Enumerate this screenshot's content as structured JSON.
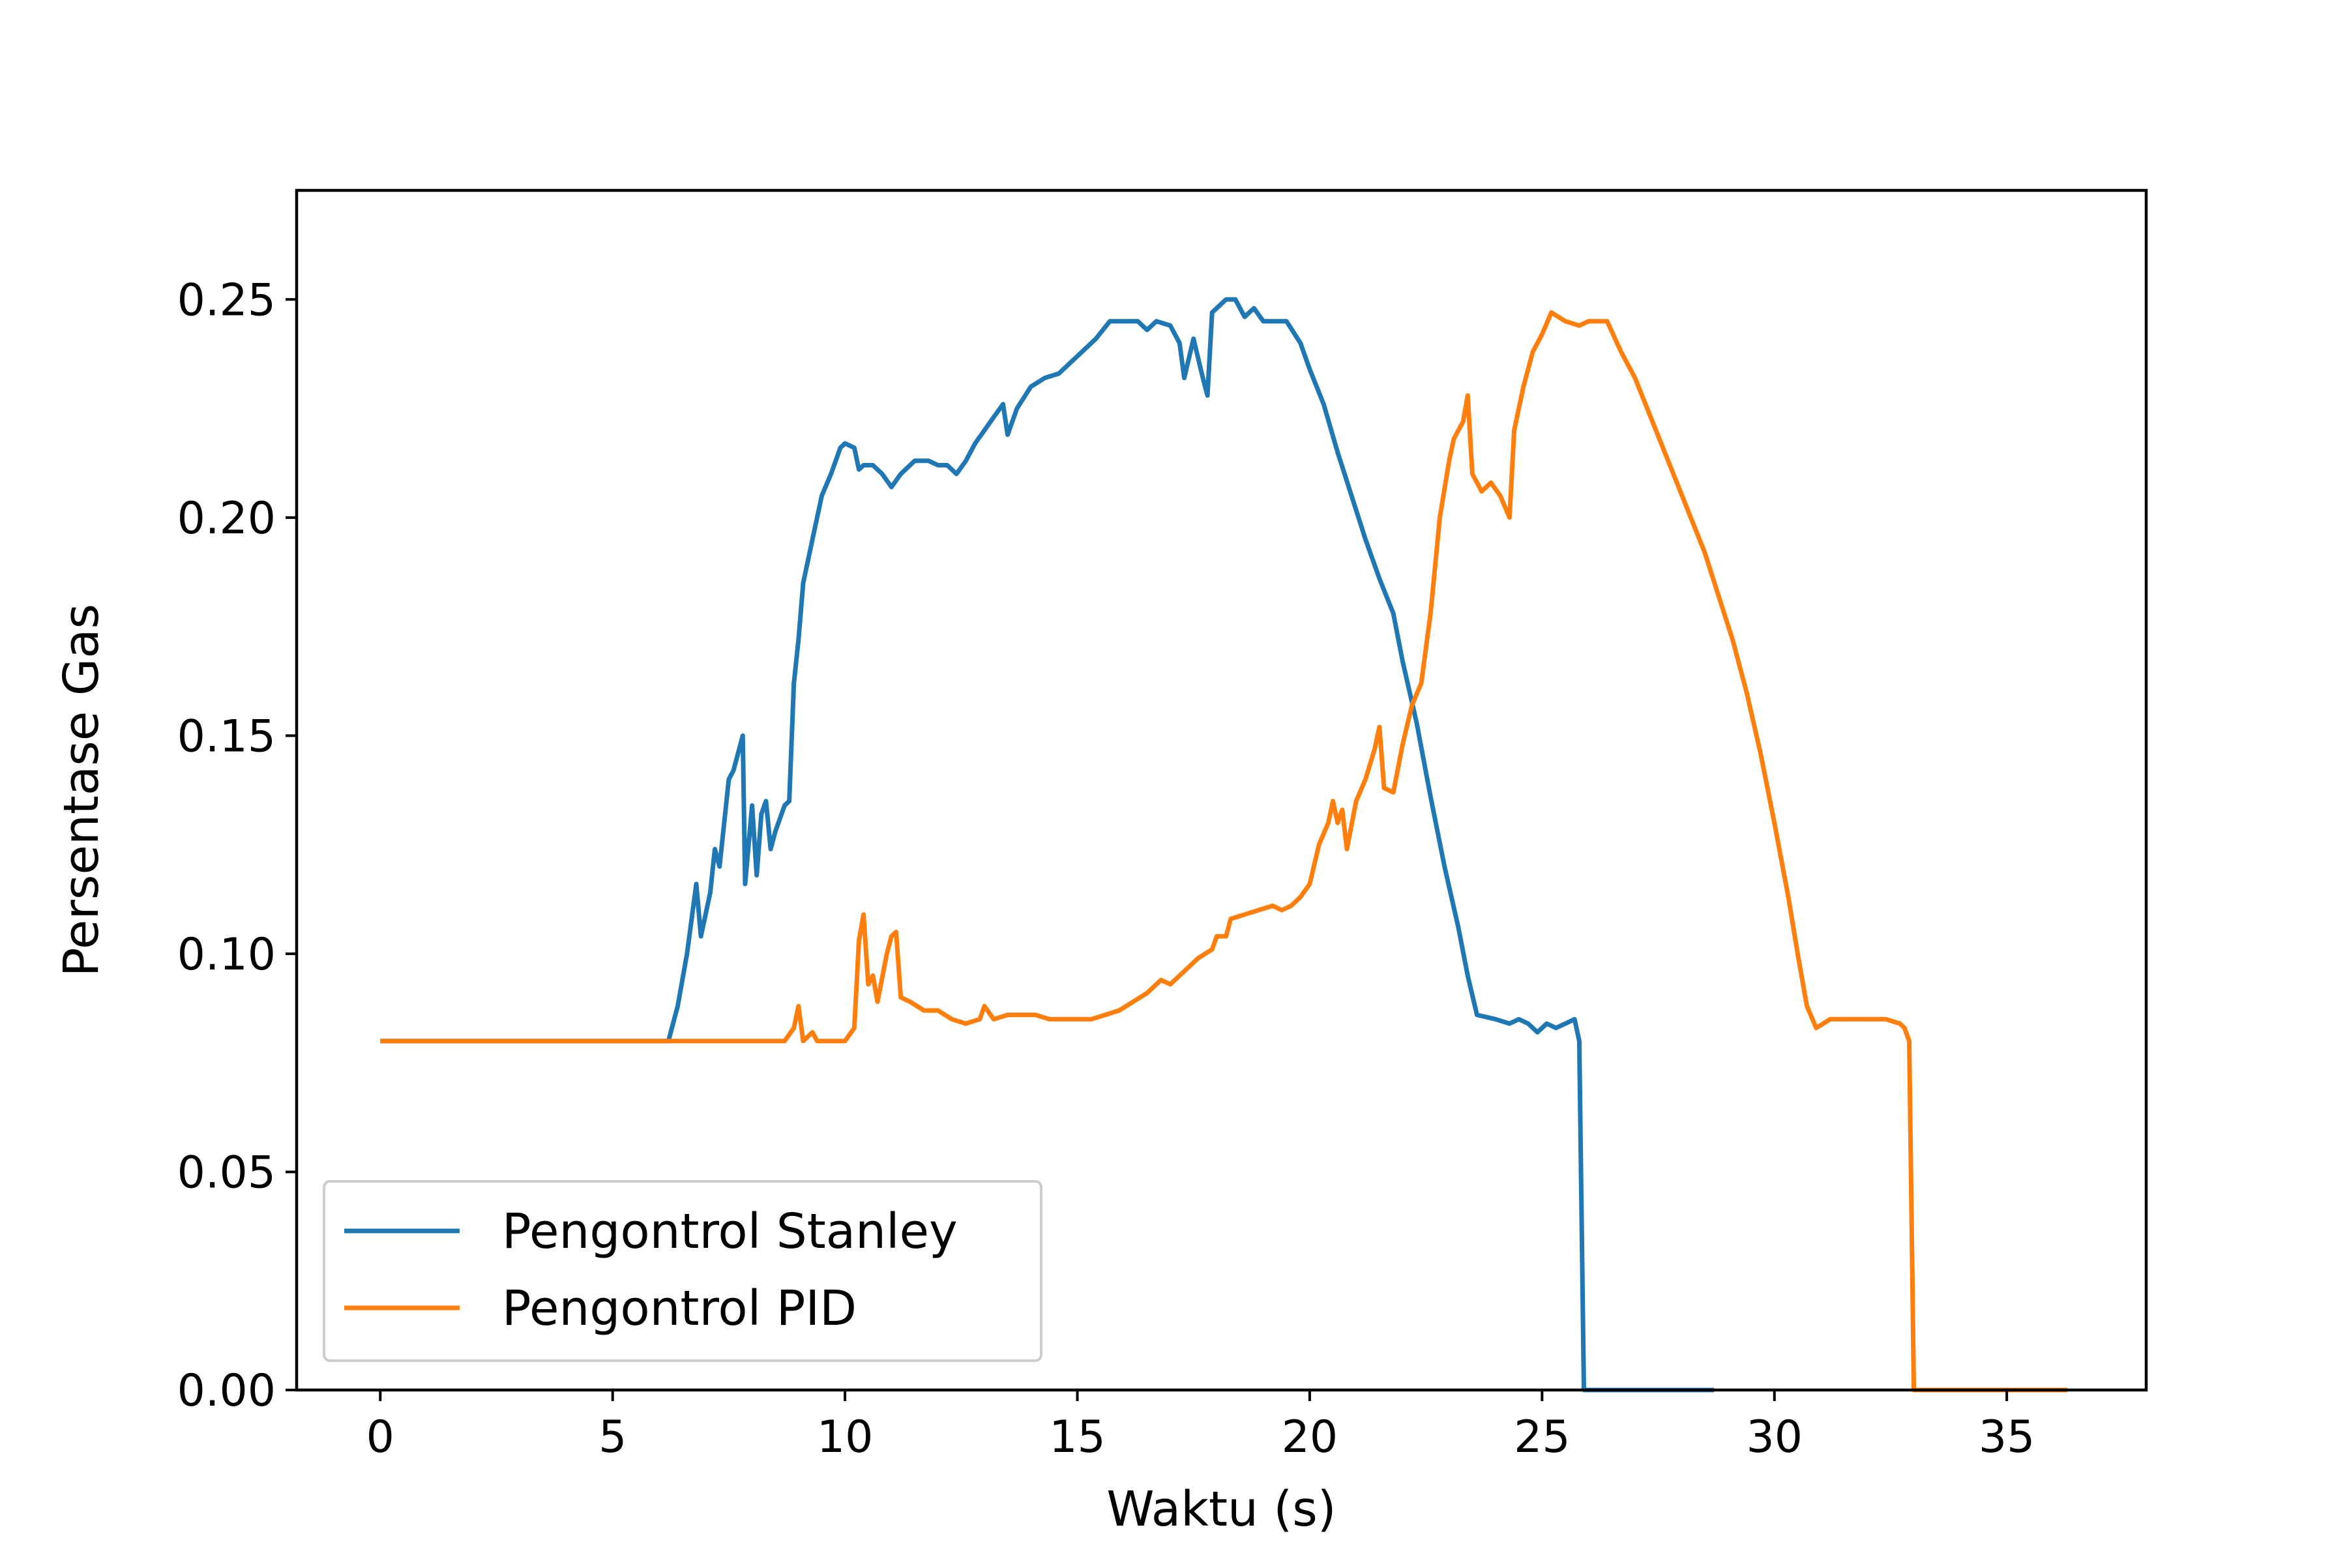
{
  "chart_data": {
    "type": "line",
    "title": "",
    "xlabel": "Waktu (s)",
    "ylabel": "Persentase Gas",
    "xlim": [
      -1.8,
      38
    ],
    "ylim": [
      0,
      0.275
    ],
    "xticks": [
      0,
      5,
      10,
      15,
      20,
      25,
      30,
      35
    ],
    "xtick_labels": [
      "0",
      "5",
      "10",
      "15",
      "20",
      "25",
      "30",
      "35"
    ],
    "yticks": [
      0.0,
      0.05,
      0.1,
      0.15,
      0.2,
      0.25
    ],
    "ytick_labels": [
      "0.00",
      "0.05",
      "0.10",
      "0.15",
      "0.20",
      "0.25"
    ],
    "grid": false,
    "legend_position": "lower-left",
    "series": [
      {
        "name": "Pengontrol Stanley",
        "color": "#1f77b4",
        "points": [
          [
            0,
            0.08
          ],
          [
            6.2,
            0.08
          ],
          [
            6.4,
            0.088
          ],
          [
            6.6,
            0.1
          ],
          [
            6.8,
            0.116
          ],
          [
            6.9,
            0.104
          ],
          [
            7.1,
            0.114
          ],
          [
            7.2,
            0.124
          ],
          [
            7.3,
            0.12
          ],
          [
            7.5,
            0.14
          ],
          [
            7.6,
            0.142
          ],
          [
            7.8,
            0.15
          ],
          [
            7.85,
            0.116
          ],
          [
            8.0,
            0.134
          ],
          [
            8.1,
            0.118
          ],
          [
            8.2,
            0.132
          ],
          [
            8.3,
            0.135
          ],
          [
            8.4,
            0.124
          ],
          [
            8.5,
            0.128
          ],
          [
            8.6,
            0.131
          ],
          [
            8.7,
            0.134
          ],
          [
            8.8,
            0.135
          ],
          [
            8.9,
            0.162
          ],
          [
            9.0,
            0.172
          ],
          [
            9.1,
            0.185
          ],
          [
            9.3,
            0.195
          ],
          [
            9.5,
            0.205
          ],
          [
            9.7,
            0.21
          ],
          [
            9.9,
            0.216
          ],
          [
            10.0,
            0.217
          ],
          [
            10.2,
            0.216
          ],
          [
            10.3,
            0.211
          ],
          [
            10.4,
            0.212
          ],
          [
            10.6,
            0.212
          ],
          [
            10.8,
            0.21
          ],
          [
            11.0,
            0.207
          ],
          [
            11.2,
            0.21
          ],
          [
            11.5,
            0.213
          ],
          [
            11.8,
            0.213
          ],
          [
            12.0,
            0.212
          ],
          [
            12.2,
            0.212
          ],
          [
            12.4,
            0.21
          ],
          [
            12.6,
            0.213
          ],
          [
            12.8,
            0.217
          ],
          [
            13.0,
            0.22
          ],
          [
            13.2,
            0.223
          ],
          [
            13.4,
            0.226
          ],
          [
            13.5,
            0.219
          ],
          [
            13.7,
            0.225
          ],
          [
            14.0,
            0.23
          ],
          [
            14.3,
            0.232
          ],
          [
            14.6,
            0.233
          ],
          [
            14.9,
            0.236
          ],
          [
            15.1,
            0.238
          ],
          [
            15.4,
            0.241
          ],
          [
            15.7,
            0.245
          ],
          [
            16.0,
            0.245
          ],
          [
            16.3,
            0.245
          ],
          [
            16.5,
            0.243
          ],
          [
            16.7,
            0.245
          ],
          [
            17.0,
            0.244
          ],
          [
            17.2,
            0.24
          ],
          [
            17.3,
            0.232
          ],
          [
            17.5,
            0.241
          ],
          [
            17.7,
            0.232
          ],
          [
            17.8,
            0.228
          ],
          [
            17.9,
            0.247
          ],
          [
            18.2,
            0.25
          ],
          [
            18.4,
            0.25
          ],
          [
            18.6,
            0.246
          ],
          [
            18.8,
            0.248
          ],
          [
            19.0,
            0.245
          ],
          [
            19.3,
            0.245
          ],
          [
            19.5,
            0.245
          ],
          [
            19.8,
            0.24
          ],
          [
            20.0,
            0.234
          ],
          [
            20.3,
            0.226
          ],
          [
            20.6,
            0.215
          ],
          [
            20.9,
            0.205
          ],
          [
            21.2,
            0.195
          ],
          [
            21.5,
            0.186
          ],
          [
            21.8,
            0.178
          ],
          [
            22.0,
            0.167
          ],
          [
            22.3,
            0.153
          ],
          [
            22.6,
            0.136
          ],
          [
            22.9,
            0.12
          ],
          [
            23.2,
            0.106
          ],
          [
            23.4,
            0.095
          ],
          [
            23.6,
            0.086
          ],
          [
            24.0,
            0.085
          ],
          [
            24.3,
            0.084
          ],
          [
            24.5,
            0.085
          ],
          [
            24.7,
            0.084
          ],
          [
            24.9,
            0.082
          ],
          [
            25.1,
            0.084
          ],
          [
            25.3,
            0.083
          ],
          [
            25.5,
            0.084
          ],
          [
            25.7,
            0.085
          ],
          [
            25.8,
            0.08
          ],
          [
            25.9,
            0.0
          ],
          [
            28.7,
            0.0
          ]
        ]
      },
      {
        "name": "Pengontrol PID",
        "color": "#ff7f0e",
        "points": [
          [
            0,
            0.08
          ],
          [
            8.7,
            0.08
          ],
          [
            8.9,
            0.083
          ],
          [
            9.0,
            0.088
          ],
          [
            9.1,
            0.08
          ],
          [
            9.3,
            0.082
          ],
          [
            9.4,
            0.08
          ],
          [
            10.0,
            0.08
          ],
          [
            10.2,
            0.083
          ],
          [
            10.3,
            0.103
          ],
          [
            10.4,
            0.109
          ],
          [
            10.5,
            0.093
          ],
          [
            10.6,
            0.095
          ],
          [
            10.7,
            0.089
          ],
          [
            10.9,
            0.1
          ],
          [
            11.0,
            0.104
          ],
          [
            11.1,
            0.105
          ],
          [
            11.2,
            0.09
          ],
          [
            11.4,
            0.089
          ],
          [
            11.7,
            0.087
          ],
          [
            12.0,
            0.087
          ],
          [
            12.3,
            0.085
          ],
          [
            12.6,
            0.084
          ],
          [
            12.9,
            0.085
          ],
          [
            13.0,
            0.088
          ],
          [
            13.2,
            0.085
          ],
          [
            13.5,
            0.086
          ],
          [
            13.8,
            0.086
          ],
          [
            14.1,
            0.086
          ],
          [
            14.4,
            0.085
          ],
          [
            14.7,
            0.085
          ],
          [
            15.0,
            0.085
          ],
          [
            15.3,
            0.085
          ],
          [
            15.6,
            0.086
          ],
          [
            15.9,
            0.087
          ],
          [
            16.2,
            0.089
          ],
          [
            16.5,
            0.091
          ],
          [
            16.8,
            0.094
          ],
          [
            17.0,
            0.093
          ],
          [
            17.3,
            0.096
          ],
          [
            17.6,
            0.099
          ],
          [
            17.9,
            0.101
          ],
          [
            18.0,
            0.104
          ],
          [
            18.2,
            0.104
          ],
          [
            18.3,
            0.108
          ],
          [
            18.6,
            0.109
          ],
          [
            18.9,
            0.11
          ],
          [
            19.2,
            0.111
          ],
          [
            19.4,
            0.11
          ],
          [
            19.6,
            0.111
          ],
          [
            19.8,
            0.113
          ],
          [
            20.0,
            0.116
          ],
          [
            20.2,
            0.125
          ],
          [
            20.4,
            0.13
          ],
          [
            20.5,
            0.135
          ],
          [
            20.6,
            0.13
          ],
          [
            20.7,
            0.133
          ],
          [
            20.8,
            0.124
          ],
          [
            21.0,
            0.135
          ],
          [
            21.2,
            0.14
          ],
          [
            21.4,
            0.147
          ],
          [
            21.5,
            0.152
          ],
          [
            21.6,
            0.138
          ],
          [
            21.8,
            0.137
          ],
          [
            22.0,
            0.148
          ],
          [
            22.2,
            0.157
          ],
          [
            22.4,
            0.162
          ],
          [
            22.6,
            0.178
          ],
          [
            22.8,
            0.2
          ],
          [
            23.0,
            0.213
          ],
          [
            23.1,
            0.218
          ],
          [
            23.3,
            0.222
          ],
          [
            23.4,
            0.228
          ],
          [
            23.5,
            0.21
          ],
          [
            23.7,
            0.206
          ],
          [
            23.9,
            0.208
          ],
          [
            24.1,
            0.205
          ],
          [
            24.3,
            0.2
          ],
          [
            24.4,
            0.22
          ],
          [
            24.6,
            0.23
          ],
          [
            24.8,
            0.238
          ],
          [
            25.0,
            0.242
          ],
          [
            25.2,
            0.247
          ],
          [
            25.5,
            0.245
          ],
          [
            25.8,
            0.244
          ],
          [
            26.0,
            0.245
          ],
          [
            26.4,
            0.245
          ],
          [
            26.7,
            0.238
          ],
          [
            27.0,
            0.232
          ],
          [
            27.3,
            0.224
          ],
          [
            27.6,
            0.216
          ],
          [
            27.9,
            0.208
          ],
          [
            28.2,
            0.2
          ],
          [
            28.5,
            0.192
          ],
          [
            28.8,
            0.182
          ],
          [
            29.1,
            0.172
          ],
          [
            29.4,
            0.16
          ],
          [
            29.7,
            0.146
          ],
          [
            30.0,
            0.13
          ],
          [
            30.3,
            0.113
          ],
          [
            30.5,
            0.1
          ],
          [
            30.7,
            0.088
          ],
          [
            30.9,
            0.083
          ],
          [
            31.2,
            0.085
          ],
          [
            31.6,
            0.085
          ],
          [
            32.0,
            0.085
          ],
          [
            32.4,
            0.085
          ],
          [
            32.7,
            0.084
          ],
          [
            32.8,
            0.083
          ],
          [
            32.9,
            0.08
          ],
          [
            33.0,
            0.0
          ],
          [
            36.3,
            0.0
          ]
        ]
      }
    ]
  }
}
